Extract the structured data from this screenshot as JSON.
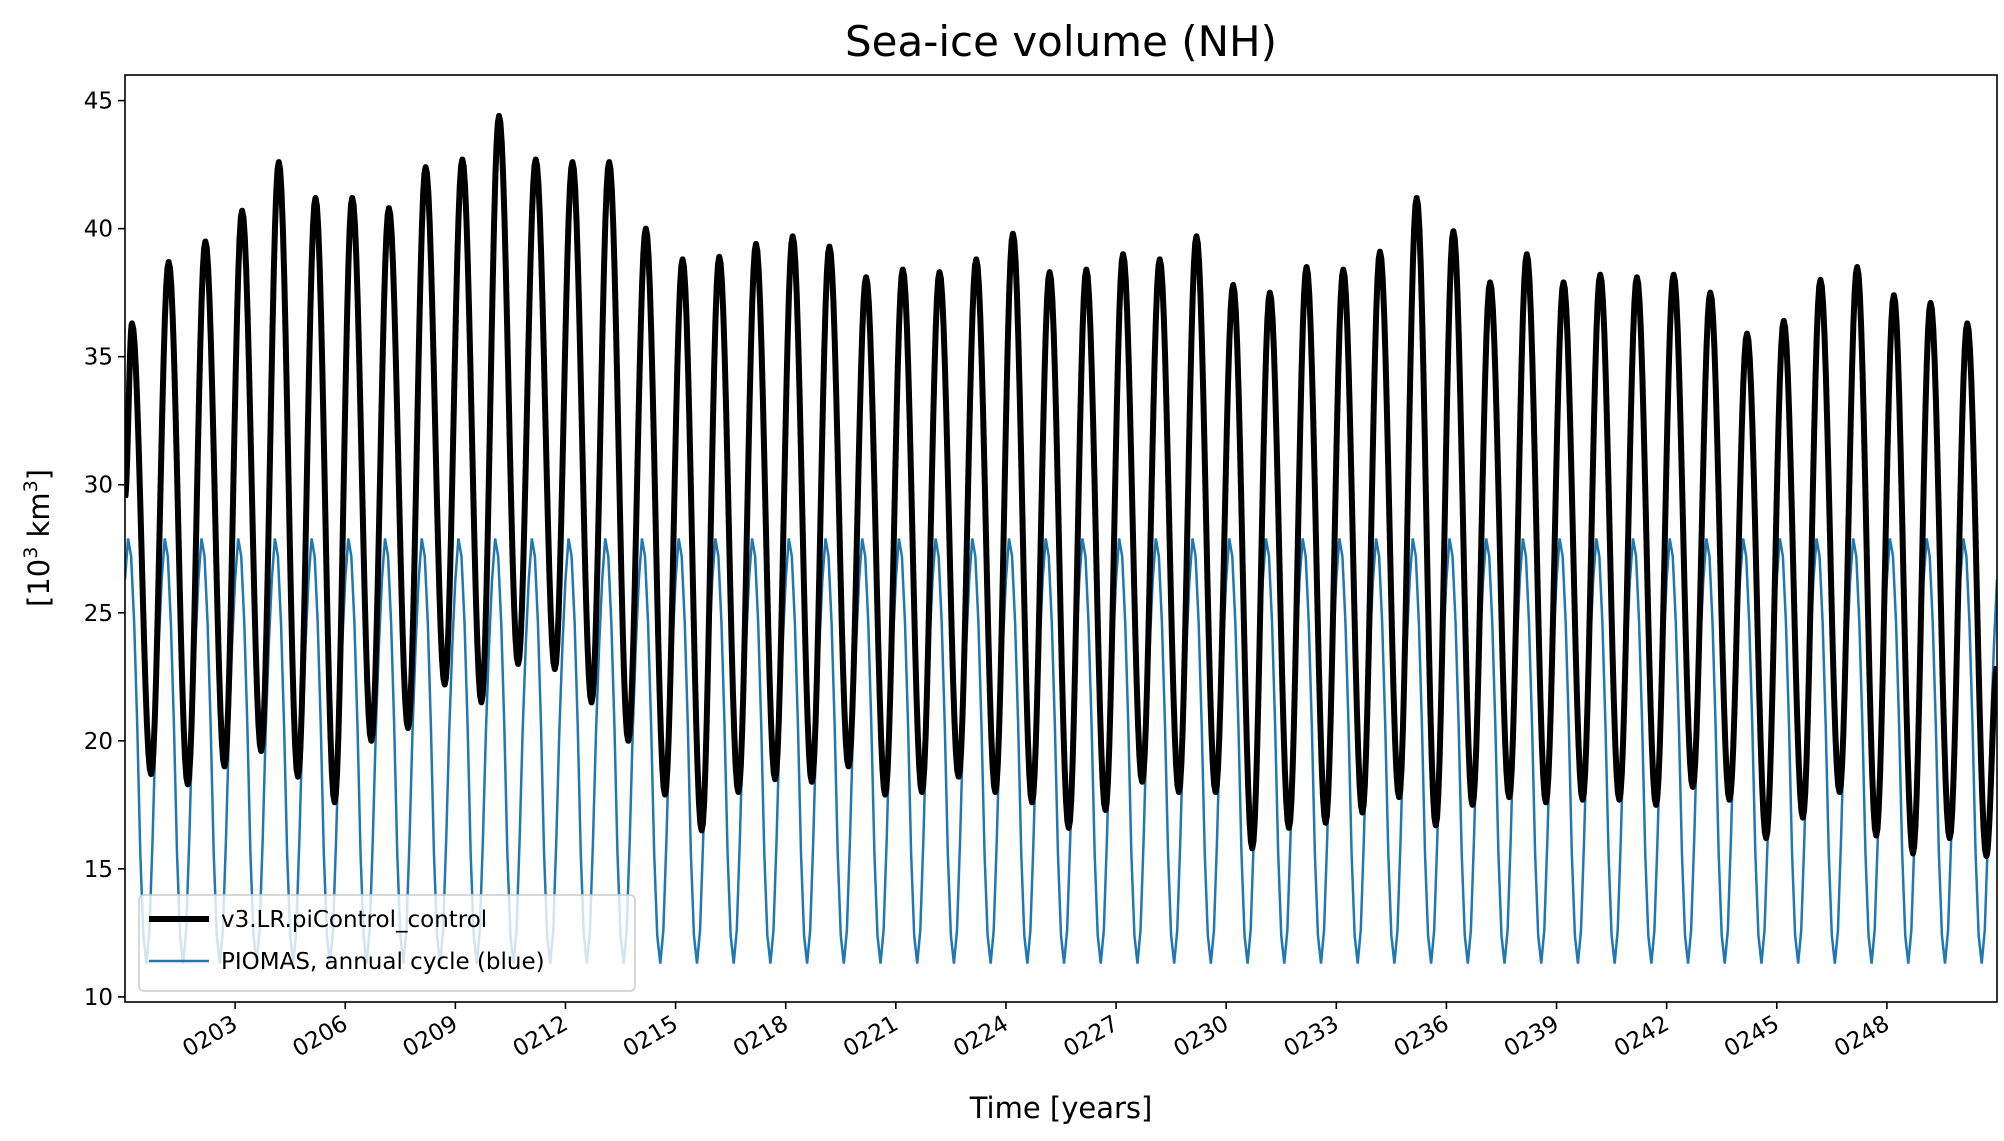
{
  "chart_data": {
    "type": "line",
    "title": "Sea-ice volume (NH)",
    "xlabel": "Time [years]",
    "ylabel_main": "[10",
    "ylabel_sup1": "3",
    "ylabel_unit": " km",
    "ylabel_sup2": "3",
    "ylabel_close": "]",
    "xlim": [
      0.0,
      51.0
    ],
    "ylim": [
      9.8,
      46.0
    ],
    "xticks": [
      {
        "x": 3,
        "label": "0203"
      },
      {
        "x": 6,
        "label": "0206"
      },
      {
        "x": 9,
        "label": "0209"
      },
      {
        "x": 12,
        "label": "0212"
      },
      {
        "x": 15,
        "label": "0215"
      },
      {
        "x": 18,
        "label": "0218"
      },
      {
        "x": 21,
        "label": "0221"
      },
      {
        "x": 24,
        "label": "0224"
      },
      {
        "x": 27,
        "label": "0227"
      },
      {
        "x": 30,
        "label": "0230"
      },
      {
        "x": 33,
        "label": "0233"
      },
      {
        "x": 36,
        "label": "0236"
      },
      {
        "x": 39,
        "label": "0239"
      },
      {
        "x": 42,
        "label": "0242"
      },
      {
        "x": 45,
        "label": "0245"
      },
      {
        "x": 48,
        "label": "0248"
      }
    ],
    "yticks": [
      10,
      15,
      20,
      25,
      30,
      35,
      40,
      45
    ],
    "legend_position": "lower-left",
    "series": [
      {
        "name": "v3.LR.piControl_control",
        "color": "#000000",
        "annual_max": [
          36.3,
          38.7,
          39.5,
          40.7,
          42.6,
          41.2,
          41.2,
          40.8,
          42.4,
          42.7,
          44.4,
          42.7,
          42.6,
          42.6,
          40.0,
          38.8,
          38.9,
          39.4,
          39.7,
          39.3,
          38.1,
          38.4,
          38.3,
          38.8,
          39.8,
          38.3,
          38.4,
          39.0,
          38.8,
          39.7,
          37.8,
          37.5,
          38.5,
          38.4,
          39.1,
          41.2,
          39.9,
          37.9,
          39.0,
          37.9,
          38.2,
          38.1,
          38.2,
          37.5,
          35.9,
          36.4,
          38.0,
          38.5,
          37.4,
          37.1,
          36.3
        ],
        "annual_min": [
          18.7,
          18.3,
          19.0,
          19.6,
          18.6,
          17.6,
          20.0,
          20.5,
          22.2,
          21.5,
          23.0,
          22.8,
          21.5,
          20.0,
          17.9,
          16.5,
          18.0,
          18.5,
          18.4,
          19.0,
          17.9,
          18.0,
          18.6,
          18.0,
          17.6,
          16.6,
          17.3,
          18.4,
          18.0,
          18.0,
          15.8,
          16.6,
          16.8,
          17.2,
          17.8,
          16.7,
          17.5,
          17.8,
          17.6,
          17.7,
          17.7,
          17.5,
          18.2,
          17.7,
          16.2,
          17.0,
          18.0,
          16.3,
          15.6,
          16.2,
          15.5
        ],
        "end_value": 22.9
      },
      {
        "name": "PIOMAS, annual cycle (blue)",
        "color": "#1f77b4",
        "monthly_climatology": [
          26.3,
          27.9,
          27.2,
          24.6,
          20.6,
          15.6,
          12.4,
          11.3,
          12.6,
          16.1,
          20.4,
          23.7
        ]
      }
    ]
  }
}
